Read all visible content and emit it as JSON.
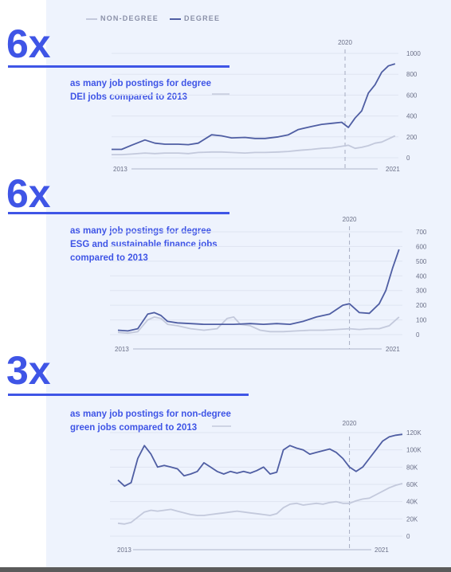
{
  "legend": {
    "non_degree": "NON-DEGREE",
    "degree": "DEGREE",
    "non_degree_color": "#c3c9dc",
    "degree_color": "#4f5ea3"
  },
  "accent_color": "#3f55e6",
  "sections": [
    {
      "multiplier": "6x",
      "desc_lines": [
        "as many job postings for degree",
        "DEI jobs compared to 2013"
      ]
    },
    {
      "multiplier": "6x",
      "desc_lines": [
        "as many job postings for degree",
        "ESG and sustainable finance jobs",
        "compared to 2013"
      ]
    },
    {
      "multiplier": "3x",
      "desc_lines": [
        "as many job postings for non-degree",
        "green jobs compared to 2013"
      ]
    }
  ],
  "chart_data": [
    {
      "type": "line",
      "x_start_label": "2013",
      "x_end_label": "2021",
      "marker_label": "2020",
      "x_range": [
        2013,
        2021.6
      ],
      "marker_x": 2020,
      "ylim": [
        0,
        1000
      ],
      "yticks": [
        0,
        200,
        400,
        600,
        800,
        1000
      ],
      "ytick_labels": [
        "0",
        "200",
        "400",
        "600",
        "800",
        "1000"
      ],
      "series": [
        {
          "name": "DEGREE",
          "x": [
            2013.0,
            2013.3,
            2013.6,
            2014.0,
            2014.3,
            2014.6,
            2015.0,
            2015.3,
            2015.6,
            2016.0,
            2016.3,
            2016.6,
            2017.0,
            2017.3,
            2017.6,
            2018.0,
            2018.3,
            2018.6,
            2019.0,
            2019.3,
            2019.6,
            2019.9,
            2020.1,
            2020.3,
            2020.5,
            2020.7,
            2020.9,
            2021.1,
            2021.3,
            2021.5
          ],
          "values": [
            80,
            80,
            120,
            170,
            140,
            130,
            130,
            125,
            140,
            220,
            210,
            190,
            195,
            185,
            185,
            200,
            220,
            270,
            300,
            320,
            330,
            340,
            290,
            380,
            450,
            620,
            700,
            820,
            880,
            900
          ]
        },
        {
          "name": "NON-DEGREE",
          "x": [
            2013.0,
            2013.3,
            2013.6,
            2014.0,
            2014.3,
            2014.6,
            2015.0,
            2015.3,
            2015.6,
            2016.0,
            2016.3,
            2016.6,
            2017.0,
            2017.3,
            2017.6,
            2018.0,
            2018.3,
            2018.6,
            2019.0,
            2019.3,
            2019.6,
            2019.9,
            2020.1,
            2020.3,
            2020.5,
            2020.7,
            2020.9,
            2021.1,
            2021.3,
            2021.5
          ],
          "values": [
            30,
            30,
            35,
            45,
            40,
            45,
            45,
            40,
            50,
            55,
            55,
            50,
            45,
            50,
            50,
            55,
            60,
            70,
            80,
            90,
            95,
            110,
            120,
            90,
            100,
            115,
            140,
            150,
            180,
            210
          ]
        }
      ]
    },
    {
      "type": "line",
      "x_start_label": "2013",
      "x_end_label": "2021",
      "marker_label": "2020",
      "x_range": [
        2013,
        2021.6
      ],
      "marker_x": 2020,
      "ylim": [
        0,
        700
      ],
      "yticks": [
        0,
        100,
        200,
        300,
        400,
        500,
        600,
        700
      ],
      "ytick_labels": [
        "0",
        "100",
        "200",
        "300",
        "400",
        "500",
        "600",
        "700"
      ],
      "series": [
        {
          "name": "DEGREE",
          "x": [
            2013.0,
            2013.3,
            2013.6,
            2013.9,
            2014.1,
            2014.3,
            2014.5,
            2014.8,
            2015.2,
            2015.6,
            2016.0,
            2016.5,
            2017.0,
            2017.4,
            2017.8,
            2018.2,
            2018.6,
            2019.0,
            2019.4,
            2019.8,
            2020.0,
            2020.3,
            2020.6,
            2020.9,
            2021.1,
            2021.3,
            2021.5
          ],
          "values": [
            30,
            25,
            40,
            140,
            150,
            130,
            90,
            80,
            75,
            70,
            70,
            70,
            75,
            70,
            75,
            70,
            90,
            120,
            140,
            200,
            210,
            150,
            145,
            210,
            300,
            450,
            580
          ]
        },
        {
          "name": "NON-DEGREE",
          "x": [
            2013.0,
            2013.3,
            2013.6,
            2013.9,
            2014.1,
            2014.3,
            2014.5,
            2014.8,
            2015.2,
            2015.6,
            2016.0,
            2016.3,
            2016.5,
            2016.7,
            2017.0,
            2017.3,
            2017.6,
            2018.0,
            2018.4,
            2018.8,
            2019.2,
            2019.6,
            2020.0,
            2020.3,
            2020.6,
            2020.9,
            2021.2,
            2021.5
          ],
          "values": [
            15,
            10,
            20,
            100,
            120,
            110,
            70,
            60,
            40,
            30,
            40,
            110,
            120,
            70,
            60,
            30,
            20,
            20,
            25,
            30,
            30,
            35,
            40,
            35,
            40,
            40,
            60,
            120
          ]
        }
      ]
    },
    {
      "type": "line",
      "x_start_label": "2013",
      "x_end_label": "2021",
      "marker_label": "2020",
      "x_range": [
        2013,
        2021.6
      ],
      "marker_x": 2020,
      "ylim": [
        0,
        120000
      ],
      "yticks": [
        0,
        20000,
        40000,
        60000,
        80000,
        100000,
        120000
      ],
      "ytick_labels": [
        "0",
        "20K",
        "40K",
        "60K",
        "80K",
        "100K",
        "120K"
      ],
      "series": [
        {
          "name": "DEGREE",
          "x": [
            2013.0,
            2013.2,
            2013.4,
            2013.6,
            2013.8,
            2014.0,
            2014.2,
            2014.4,
            2014.6,
            2014.8,
            2015.0,
            2015.2,
            2015.4,
            2015.6,
            2015.8,
            2016.0,
            2016.2,
            2016.4,
            2016.6,
            2016.8,
            2017.0,
            2017.2,
            2017.4,
            2017.6,
            2017.8,
            2018.0,
            2018.2,
            2018.4,
            2018.6,
            2018.8,
            2019.0,
            2019.2,
            2019.4,
            2019.6,
            2019.8,
            2020.0,
            2020.2,
            2020.4,
            2020.6,
            2020.8,
            2021.0,
            2021.2,
            2021.4,
            2021.6
          ],
          "values": [
            65000,
            58000,
            62000,
            90000,
            105000,
            95000,
            80000,
            82000,
            80000,
            78000,
            70000,
            72000,
            75000,
            85000,
            80000,
            75000,
            72000,
            75000,
            73000,
            75000,
            73000,
            76000,
            80000,
            72000,
            74000,
            100000,
            105000,
            102000,
            100000,
            95000,
            97000,
            99000,
            101000,
            97000,
            90000,
            80000,
            75000,
            80000,
            90000,
            100000,
            110000,
            115000,
            117000,
            118000
          ]
        },
        {
          "name": "NON-DEGREE",
          "x": [
            2013.0,
            2013.2,
            2013.4,
            2013.6,
            2013.8,
            2014.0,
            2014.2,
            2014.4,
            2014.6,
            2014.8,
            2015.0,
            2015.2,
            2015.4,
            2015.6,
            2015.8,
            2016.0,
            2016.2,
            2016.4,
            2016.6,
            2016.8,
            2017.0,
            2017.2,
            2017.4,
            2017.6,
            2017.8,
            2018.0,
            2018.2,
            2018.4,
            2018.6,
            2018.8,
            2019.0,
            2019.2,
            2019.4,
            2019.6,
            2019.8,
            2020.0,
            2020.2,
            2020.4,
            2020.6,
            2020.8,
            2021.0,
            2021.2,
            2021.4,
            2021.6
          ],
          "values": [
            15000,
            14000,
            16000,
            22000,
            28000,
            30000,
            29000,
            30000,
            31000,
            29000,
            27000,
            25000,
            24000,
            24000,
            25000,
            26000,
            27000,
            28000,
            29000,
            28000,
            27000,
            26000,
            25000,
            24000,
            26000,
            33000,
            37000,
            38000,
            36000,
            37000,
            38000,
            37000,
            39000,
            40000,
            38000,
            38000,
            41000,
            43000,
            44000,
            48000,
            52000,
            56000,
            59000,
            61000
          ]
        }
      ]
    }
  ]
}
